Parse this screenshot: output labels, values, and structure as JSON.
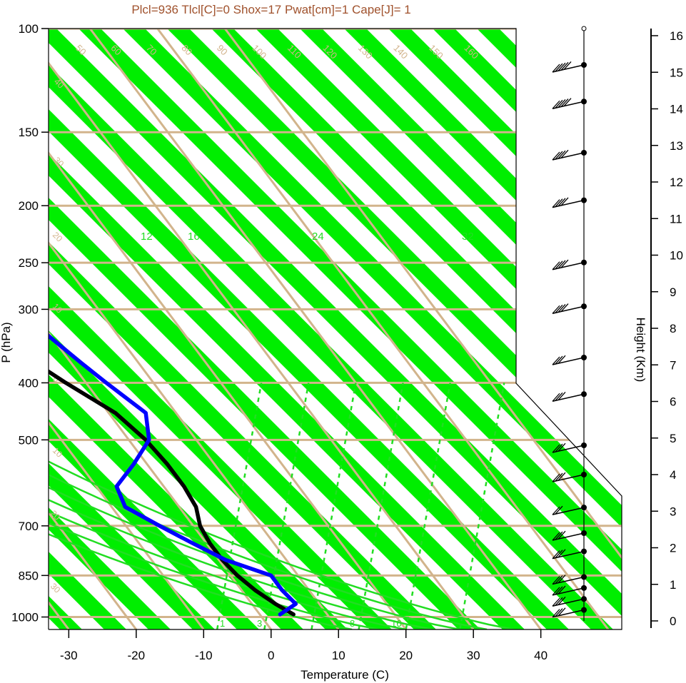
{
  "header": "Plcl=936 Tlcl[C]=0 Shox=17 Pwat[cm]=1 Cape[J]= 1",
  "colors": {
    "dry_adiabat_band": "#00ee00",
    "isobar": "#d2b48c",
    "isotherm_skewed": "#d2b48c",
    "moist_adiabat": "#22dd22",
    "mixing_ratio": "#22dd22",
    "temperature": "#000000",
    "dewpoint": "#0000ff",
    "header": "#a0522d",
    "parcel": "#a52a2a"
  },
  "chart_data": {
    "type": "line",
    "title": "Plcl=936 Tlcl[C]=0 Shox=17 Pwat[cm]=1 Cape[J]= 1",
    "xlabel": "Temperature (C)",
    "ylabel": "P (hPa)",
    "y2label": "Height (Km)",
    "xlim": [
      -33,
      52
    ],
    "ylim": [
      1050,
      100
    ],
    "y_scale": "log",
    "x_ticks": [
      -30,
      -20,
      -10,
      0,
      10,
      20,
      30,
      40
    ],
    "y_ticks": [
      100,
      150,
      200,
      250,
      300,
      400,
      500,
      700,
      850,
      1000
    ],
    "height_ticks": [
      0,
      1,
      2,
      3,
      4,
      5,
      6,
      7,
      8,
      9,
      10,
      11,
      12,
      13,
      14,
      15,
      16
    ],
    "skewed_isotherm_labels": [
      "50",
      "60",
      "70",
      "80",
      "90",
      "100",
      "110",
      "120",
      "130",
      "140",
      "150",
      "160"
    ],
    "right_side_isotherm_labels": [
      "30",
      "20",
      "10",
      "0",
      "10",
      "20",
      "30"
    ],
    "left_side_labels": [
      "40",
      "30",
      "20",
      "10",
      "0",
      "10",
      "20",
      "30"
    ],
    "moist_adiabat_labels": [
      "12",
      "16",
      "24",
      "32"
    ],
    "mixing_ratio_labels": [
      "1",
      "3",
      "8",
      "16"
    ],
    "series": [
      {
        "name": "Temperature",
        "points": [
          [
            108,
            4.5
          ],
          [
            130,
            1.5
          ],
          [
            150,
            -2.5
          ],
          [
            175,
            -7
          ],
          [
            200,
            -12
          ],
          [
            225,
            -13
          ],
          [
            250,
            -12.5
          ],
          [
            300,
            -10.5
          ],
          [
            350,
            -7
          ],
          [
            400,
            -3
          ],
          [
            450,
            1
          ],
          [
            500,
            2.5
          ],
          [
            550,
            3
          ],
          [
            600,
            3
          ],
          [
            650,
            2.5
          ],
          [
            700,
            1
          ],
          [
            750,
            0.5
          ],
          [
            800,
            0.5
          ],
          [
            850,
            1
          ],
          [
            900,
            2
          ],
          [
            950,
            3.5
          ],
          [
            990,
            5
          ]
        ]
      },
      {
        "name": "Dewpoint",
        "points": [
          [
            108,
            -6
          ],
          [
            150,
            -10
          ],
          [
            180,
            -10.5
          ],
          [
            200,
            -11.5
          ],
          [
            225,
            -12
          ],
          [
            250,
            -10
          ],
          [
            280,
            -6.5
          ],
          [
            300,
            -3.5
          ],
          [
            330,
            -0.5
          ],
          [
            370,
            1.5
          ],
          [
            400,
            3
          ],
          [
            450,
            5.5
          ],
          [
            500,
            3
          ],
          [
            550,
            -2
          ],
          [
            600,
            -7
          ],
          [
            650,
            -8
          ],
          [
            700,
            -5
          ],
          [
            750,
            -2
          ],
          [
            800,
            1
          ],
          [
            850,
            6
          ],
          [
            900,
            6
          ],
          [
            950,
            6.5
          ],
          [
            990,
            3
          ]
        ]
      }
    ],
    "wind_barbs": [
      {
        "height_km": 0.3,
        "speed_kt": 25
      },
      {
        "height_km": 0.6,
        "speed_kt": 25
      },
      {
        "height_km": 0.9,
        "speed_kt": 25
      },
      {
        "height_km": 1.2,
        "speed_kt": 30
      },
      {
        "height_km": 1.9,
        "speed_kt": 25
      },
      {
        "height_km": 2.4,
        "speed_kt": 25
      },
      {
        "height_km": 3.1,
        "speed_kt": 20
      },
      {
        "height_km": 4.0,
        "speed_kt": 30
      },
      {
        "height_km": 4.8,
        "speed_kt": 30
      },
      {
        "height_km": 6.2,
        "speed_kt": 25
      },
      {
        "height_km": 7.2,
        "speed_kt": 30
      },
      {
        "height_km": 8.6,
        "speed_kt": 35
      },
      {
        "height_km": 9.8,
        "speed_kt": 35
      },
      {
        "height_km": 11.5,
        "speed_kt": 40
      },
      {
        "height_km": 12.8,
        "speed_kt": 40
      },
      {
        "height_km": 14.2,
        "speed_kt": 45
      },
      {
        "height_km": 15.2,
        "speed_kt": 45
      }
    ]
  }
}
